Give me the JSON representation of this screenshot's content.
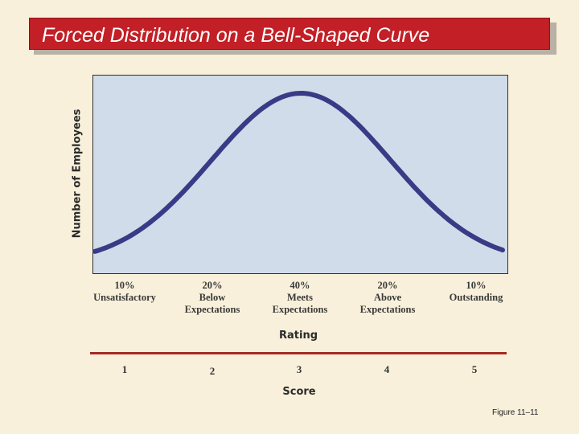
{
  "title": "Forced Distribution on a Bell-Shaped Curve",
  "caption": "Figure 11–11",
  "chart_data": {
    "type": "line",
    "title": "Forced Distribution on a Bell-Shaped Curve",
    "xlabel": "Rating",
    "ylabel": "Number of Employees",
    "secondary_xlabel": "Score",
    "grid": false,
    "line_color": "#3a3a86",
    "curve_mean": 3,
    "curve_sd": 1.0,
    "categories": [
      {
        "percent": "10%",
        "label": [
          "Unsatisfactory"
        ],
        "score": "1"
      },
      {
        "percent": "20%",
        "label": [
          "Below",
          "Expectations"
        ],
        "score": "2"
      },
      {
        "percent": "40%",
        "label": [
          "Meets",
          "Expectations"
        ],
        "score": "3"
      },
      {
        "percent": "20%",
        "label": [
          "Above",
          "Expectations"
        ],
        "score": "4"
      },
      {
        "percent": "10%",
        "label": [
          "Outstanding"
        ],
        "score": "5"
      }
    ]
  },
  "colors": {
    "background": "#f8f0da",
    "title_bar": "#c21f26",
    "plot_bg": "#d1dcea",
    "rule": "#a52a24"
  }
}
